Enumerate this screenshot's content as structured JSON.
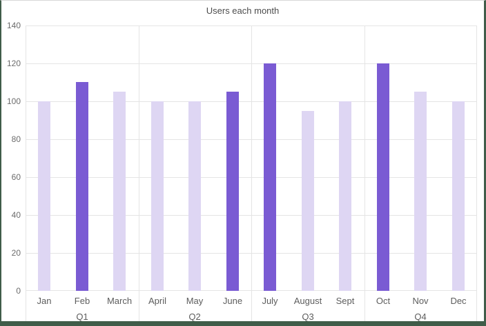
{
  "title": "Users each month",
  "colors": {
    "background": "#FFFFFF",
    "frame_border": "#405C49",
    "gridline": "#E4E4E4",
    "bar_default": "#DED6F3",
    "bar_highlight": "#7A5BD3",
    "axis_label_text": "#6B6B6B",
    "category_label_text": "#5C5C5C",
    "title_text": "#4C4C4C"
  },
  "chart_data": {
    "type": "bar",
    "title": "Users each month",
    "categories": [
      "Jan",
      "Feb",
      "March",
      "April",
      "May",
      "June",
      "July",
      "August",
      "Sept",
      "Oct",
      "Nov",
      "Dec"
    ],
    "values": [
      100,
      110,
      105,
      100,
      100,
      105,
      120,
      95,
      100,
      120,
      105,
      100
    ],
    "highlighted_categories": [
      "Feb",
      "June",
      "July",
      "Oct"
    ],
    "groups": [
      {
        "label": "Q1",
        "categories": [
          "Jan",
          "Feb",
          "March"
        ]
      },
      {
        "label": "Q2",
        "categories": [
          "April",
          "May",
          "June"
        ]
      },
      {
        "label": "Q3",
        "categories": [
          "July",
          "August",
          "Sept"
        ]
      },
      {
        "label": "Q4",
        "categories": [
          "Oct",
          "Nov",
          "Dec"
        ]
      }
    ],
    "xlabel": "",
    "ylabel": "",
    "ylim": [
      0,
      140
    ],
    "yticks": [
      0,
      20,
      40,
      60,
      80,
      100,
      120,
      140
    ],
    "grid": true,
    "legend": "none"
  }
}
